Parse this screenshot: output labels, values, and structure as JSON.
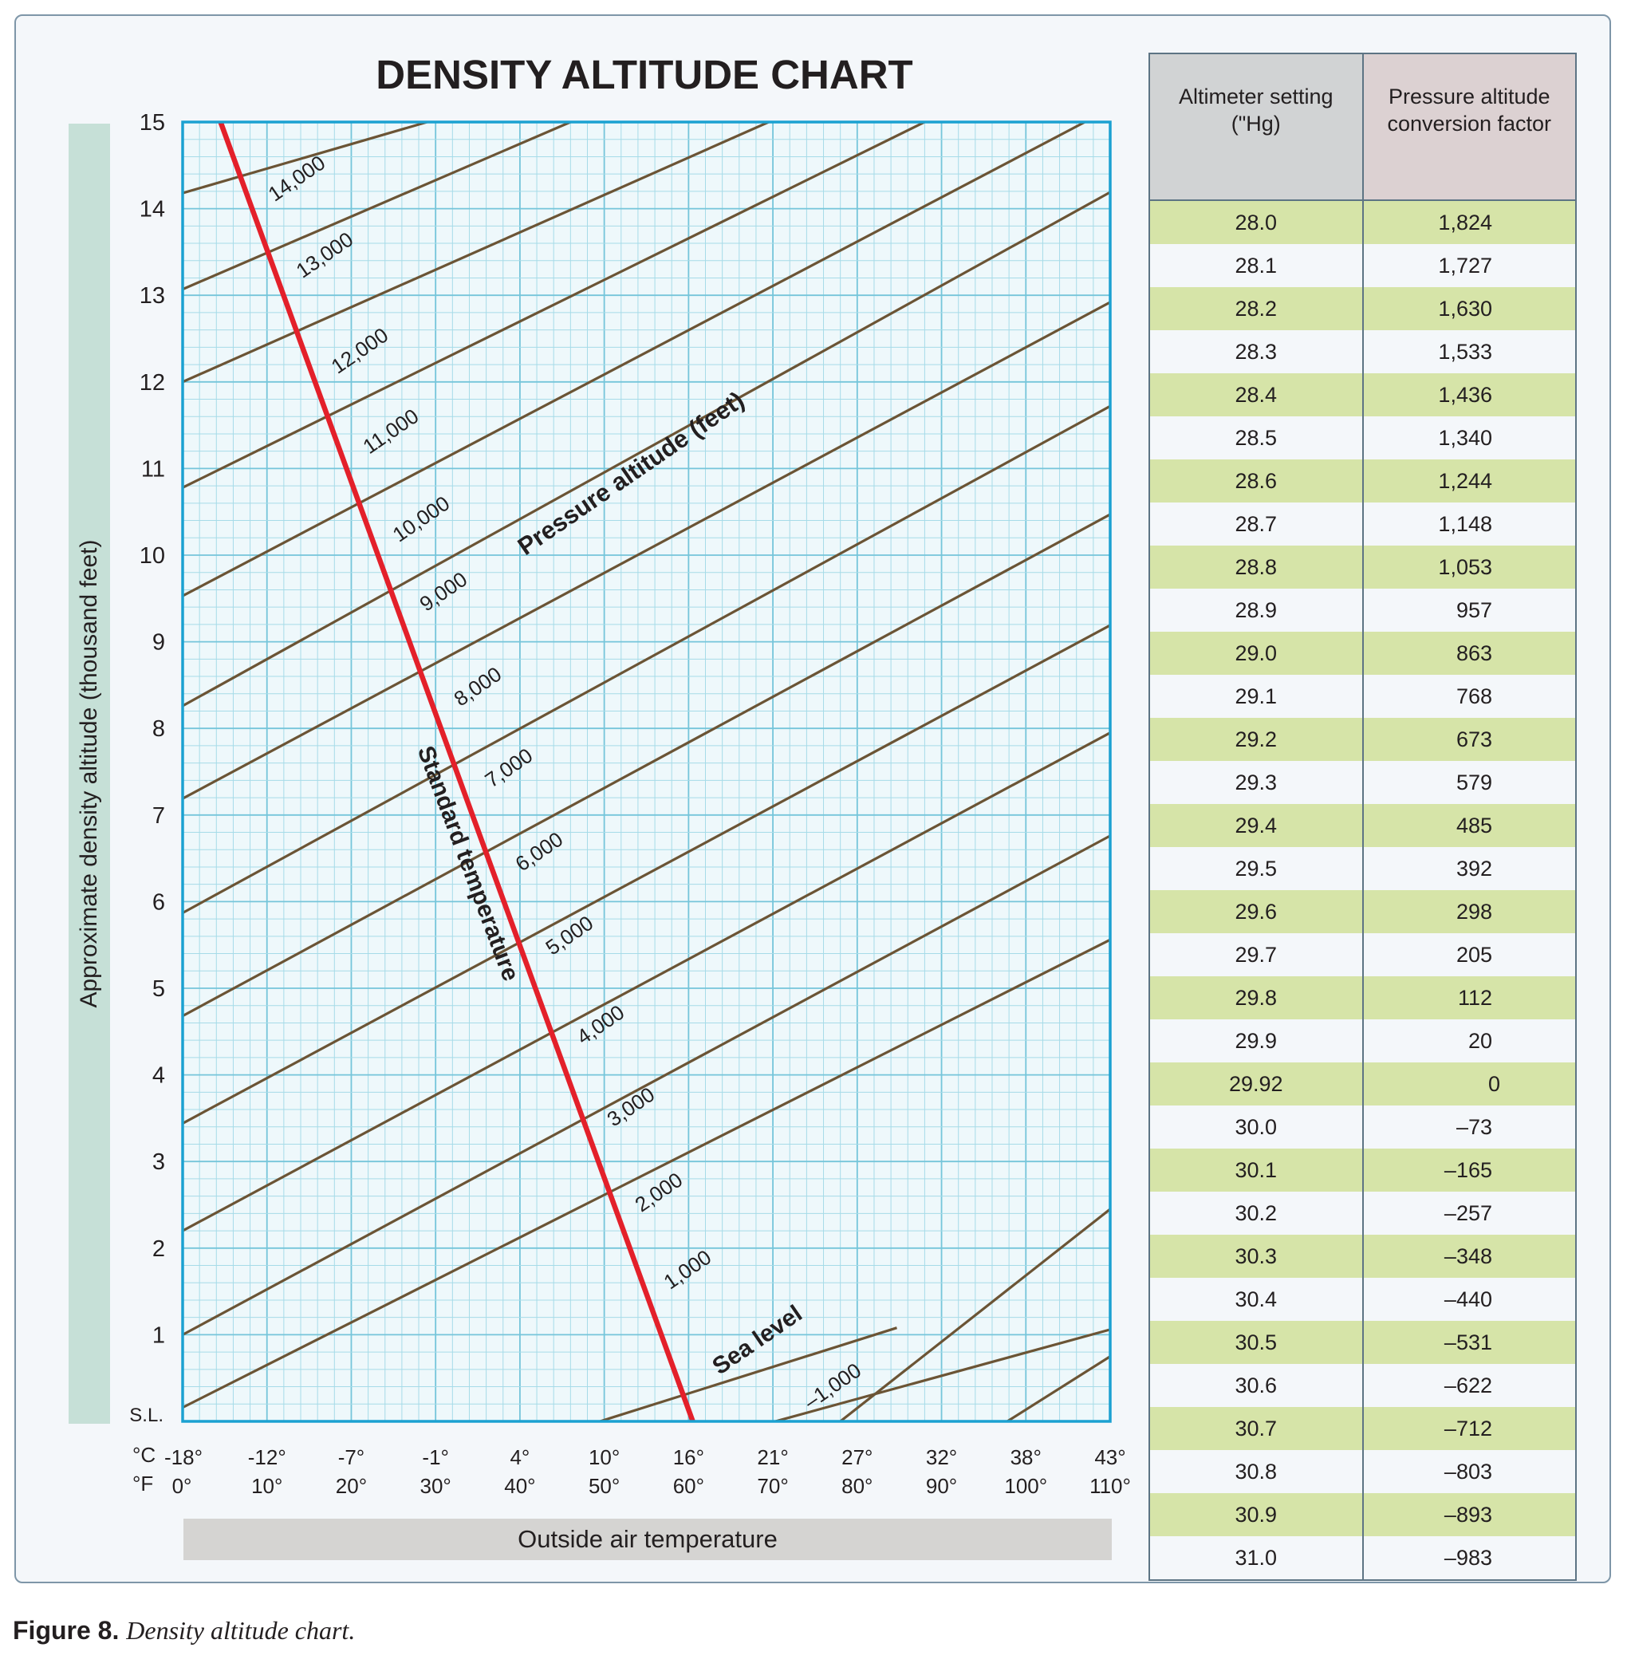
{
  "chart_data": {
    "type": "line",
    "title": "DENSITY ALTITUDE CHART",
    "ylabel": "Approximate density altitude (thousand feet)",
    "xlabel": "Outside air temperature",
    "x_unit_c": "°C",
    "x_unit_f": "°F",
    "x_ticks_f": [
      0,
      10,
      20,
      30,
      40,
      50,
      60,
      70,
      80,
      90,
      100,
      110
    ],
    "x_tick_labels_c": [
      "-18°",
      "-12°",
      "-7°",
      "-1°",
      "4°",
      "10°",
      "16°",
      "21°",
      "27°",
      "32°",
      "38°",
      "43°"
    ],
    "x_tick_labels_f": [
      "0°",
      "10°",
      "20°",
      "30°",
      "40°",
      "50°",
      "60°",
      "70°",
      "80°",
      "90°",
      "100°",
      "110°"
    ],
    "y_tick_labels": [
      "S.L.",
      "1",
      "2",
      "3",
      "4",
      "5",
      "6",
      "7",
      "8",
      "9",
      "10",
      "11",
      "12",
      "13",
      "14",
      "15"
    ],
    "xlim_f": [
      0,
      110
    ],
    "ylim": [
      0,
      15
    ],
    "grid": true,
    "pressure_altitude_label": "Pressure altitude (feet)",
    "pressure_altitude_lines": [
      {
        "label": "Sea level",
        "points": [
          [
            -5.5,
            -0.11
          ],
          [
            110,
            5.56
          ]
        ]
      },
      {
        "label": "1,000",
        "points": [
          [
            0,
            1.0
          ],
          [
            110,
            6.76
          ]
        ]
      },
      {
        "label": "2,000",
        "points": [
          [
            0,
            2.2
          ],
          [
            110,
            7.95
          ]
        ]
      },
      {
        "label": "3,000",
        "points": [
          [
            0,
            3.44
          ],
          [
            110,
            9.19
          ]
        ]
      },
      {
        "label": "4,000",
        "points": [
          [
            0,
            4.68
          ],
          [
            110,
            10.47
          ]
        ]
      },
      {
        "label": "5,000",
        "points": [
          [
            0,
            5.87
          ],
          [
            110,
            11.72
          ]
        ]
      },
      {
        "label": "6,000",
        "points": [
          [
            0,
            7.19
          ],
          [
            110,
            12.92
          ]
        ]
      },
      {
        "label": "7,000",
        "points": [
          [
            0,
            8.26
          ],
          [
            110,
            14.19
          ]
        ]
      },
      {
        "label": "8,000",
        "points": [
          [
            0,
            9.53
          ],
          [
            107,
            15
          ]
        ]
      },
      {
        "label": "9,000",
        "points": [
          [
            0,
            10.78
          ],
          [
            88,
            15
          ]
        ]
      },
      {
        "label": "10,000",
        "points": [
          [
            0,
            12.0
          ],
          [
            69.5,
            15
          ]
        ]
      },
      {
        "label": "11,000",
        "points": [
          [
            0,
            13.07
          ],
          [
            46,
            15
          ]
        ]
      },
      {
        "label": "12,000",
        "points": [
          [
            0,
            14.18
          ],
          [
            29,
            15
          ]
        ]
      },
      {
        "label": "13,000",
        "points": [
          [
            49.5,
            0
          ],
          [
            84.7,
            1.08
          ]
        ]
      },
      {
        "label": "14,000",
        "points": [
          [
            70.3,
            0
          ],
          [
            110,
            1.06
          ]
        ]
      }
    ],
    "extra_lines": [
      {
        "label": "–1,000",
        "points": [
          [
            78,
            0
          ],
          [
            110,
            2.45
          ]
        ]
      },
      {
        "points": [
          [
            97.8,
            0
          ],
          [
            110,
            0.75
          ]
        ]
      }
    ],
    "standard_temperature": {
      "label": "Standard temperature",
      "points": [
        [
          4.5,
          15
        ],
        [
          60.5,
          0
        ]
      ]
    },
    "colors": {
      "pressure_lines": "#6b5435",
      "standard_temperature": "#e3202a",
      "grid_minor": "#a6dbe8",
      "grid_major": "#75c5da",
      "plot_border": "#1ba1d1"
    }
  },
  "table": {
    "headers": [
      "Altimeter setting (\"Hg)",
      "Pressure altitude conversion factor"
    ],
    "header_lines": [
      [
        "Altimeter setting",
        "(\"Hg)"
      ],
      [
        "Pressure altitude",
        "conversion factor"
      ]
    ],
    "rows": [
      [
        "28.0",
        "1,824"
      ],
      [
        "28.1",
        "1,727"
      ],
      [
        "28.2",
        "1,630"
      ],
      [
        "28.3",
        "1,533"
      ],
      [
        "28.4",
        "1,436"
      ],
      [
        "28.5",
        "1,340"
      ],
      [
        "28.6",
        "1,244"
      ],
      [
        "28.7",
        "1,148"
      ],
      [
        "28.8",
        "1,053"
      ],
      [
        "28.9",
        "957"
      ],
      [
        "29.0",
        "863"
      ],
      [
        "29.1",
        "768"
      ],
      [
        "29.2",
        "673"
      ],
      [
        "29.3",
        "579"
      ],
      [
        "29.4",
        "485"
      ],
      [
        "29.5",
        "392"
      ],
      [
        "29.6",
        "298"
      ],
      [
        "29.7",
        "205"
      ],
      [
        "29.8",
        "112"
      ],
      [
        "29.9",
        "20"
      ],
      [
        "29.92",
        "0"
      ],
      [
        "30.0",
        "–73"
      ],
      [
        "30.1",
        "–165"
      ],
      [
        "30.2",
        "–257"
      ],
      [
        "30.3",
        "–348"
      ],
      [
        "30.4",
        "–440"
      ],
      [
        "30.5",
        "–531"
      ],
      [
        "30.6",
        "–622"
      ],
      [
        "30.7",
        "–712"
      ],
      [
        "30.8",
        "–803"
      ],
      [
        "30.9",
        "–893"
      ],
      [
        "31.0",
        "–983"
      ]
    ]
  },
  "caption": {
    "bold": "Figure 8.",
    "italic": "Density altitude chart."
  }
}
